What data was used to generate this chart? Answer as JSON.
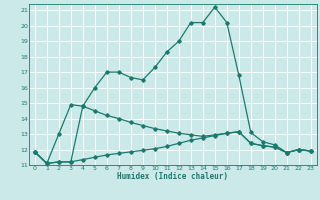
{
  "xlabel": "Humidex (Indice chaleur)",
  "xlim": [
    -0.5,
    23.5
  ],
  "ylim": [
    11,
    21.4
  ],
  "yticks": [
    11,
    12,
    13,
    14,
    15,
    16,
    17,
    18,
    19,
    20,
    21
  ],
  "xticks": [
    0,
    1,
    2,
    3,
    4,
    5,
    6,
    7,
    8,
    9,
    10,
    11,
    12,
    13,
    14,
    15,
    16,
    17,
    18,
    19,
    20,
    21,
    22,
    23
  ],
  "xlabels": [
    "0",
    "1",
    "2",
    "3",
    "4",
    "5",
    "6",
    "7",
    "8",
    "9",
    "10",
    "11",
    "12",
    "13",
    "14",
    "15",
    "16",
    "17",
    "18",
    "19",
    "20",
    "21",
    "22",
    "23"
  ],
  "background_color": "#cce9e9",
  "grid_color": "#ffffff",
  "line_color": "#1a7a6e",
  "line1_x": [
    0,
    1,
    2,
    3,
    4,
    5,
    6,
    7,
    8,
    9,
    10,
    11,
    12,
    13,
    14,
    15,
    16,
    17,
    18,
    19,
    20,
    21,
    22,
    23
  ],
  "line1_y": [
    11.85,
    11.1,
    13.0,
    14.9,
    14.8,
    16.0,
    17.0,
    17.0,
    16.65,
    16.5,
    17.3,
    18.3,
    19.0,
    20.2,
    20.2,
    21.2,
    20.2,
    16.8,
    13.1,
    12.5,
    12.3,
    11.8,
    12.0,
    11.9
  ],
  "line2_x": [
    0,
    1,
    2,
    3,
    4,
    5,
    6,
    7,
    8,
    9,
    10,
    11,
    12,
    13,
    14,
    15,
    16,
    17,
    18,
    19,
    20,
    21,
    22,
    23
  ],
  "line2_y": [
    11.85,
    11.1,
    11.2,
    11.2,
    11.35,
    11.5,
    11.65,
    11.75,
    11.85,
    11.95,
    12.05,
    12.2,
    12.4,
    12.6,
    12.75,
    12.9,
    13.05,
    13.15,
    12.4,
    12.25,
    12.15,
    11.8,
    12.0,
    11.9
  ],
  "line3_x": [
    0,
    1,
    2,
    3,
    4,
    5,
    6,
    7,
    8,
    9,
    10,
    11,
    12,
    13,
    14,
    15,
    16,
    17,
    18,
    19,
    20,
    21,
    22,
    23
  ],
  "line3_y": [
    11.85,
    11.1,
    11.2,
    11.2,
    14.8,
    14.5,
    14.2,
    14.0,
    13.75,
    13.55,
    13.35,
    13.2,
    13.05,
    12.95,
    12.85,
    12.95,
    13.05,
    13.15,
    12.4,
    12.25,
    12.15,
    11.8,
    12.0,
    11.9
  ],
  "marker": "D",
  "markersize": 1.8,
  "linewidth": 0.9
}
